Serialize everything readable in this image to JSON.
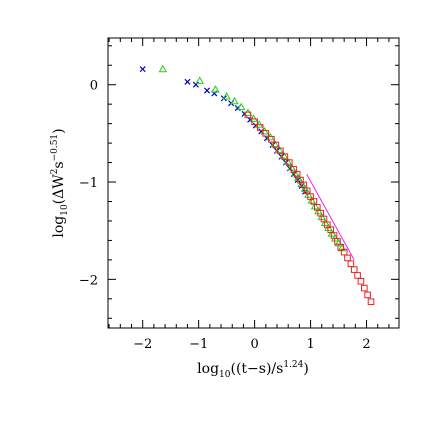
{
  "chart_data": {
    "type": "scatter",
    "title": "",
    "xlabel": {
      "prefix": "log",
      "sub": "10",
      "body": "((t−s)/s",
      "sup": "1.24",
      "suffix": ")"
    },
    "ylabel": {
      "prefix": "log",
      "sub": "10",
      "body": "(ΔW",
      "sup1": "2",
      "mid": "s",
      "sup2": "−0.51",
      "suffix": ")"
    },
    "xlim": [
      -2.62,
      2.58
    ],
    "ylim": [
      -2.5,
      0.48
    ],
    "x_ticks": [
      {
        "value": -2,
        "label": "−2"
      },
      {
        "value": -1,
        "label": "−1"
      },
      {
        "value": 0,
        "label": "0"
      },
      {
        "value": 1,
        "label": "1"
      },
      {
        "value": 2,
        "label": "2"
      }
    ],
    "y_ticks": [
      {
        "value": 0,
        "label": "0"
      },
      {
        "value": -1,
        "label": "−1"
      },
      {
        "value": -2,
        "label": "−2"
      }
    ],
    "x_minor_step": 0.2,
    "y_minor_step": 0.2,
    "grid": false,
    "colors": {
      "cross": "#0000cc",
      "triangle": "#22cc22",
      "square": "#ee2222",
      "line": "#ee22ee"
    },
    "series": [
      {
        "marker": "cross",
        "x": [
          -2.0,
          -1.2,
          -1.05,
          -0.85,
          -0.72,
          -0.55,
          -0.42,
          -0.3,
          -0.18,
          -0.08,
          0.02,
          0.12,
          0.22,
          0.32,
          0.4,
          0.48,
          0.56,
          0.63,
          0.7,
          0.77,
          0.84,
          0.9
        ],
        "y": [
          0.16,
          0.03,
          0.0,
          -0.06,
          -0.09,
          -0.14,
          -0.19,
          -0.24,
          -0.3,
          -0.36,
          -0.42,
          -0.48,
          -0.55,
          -0.62,
          -0.68,
          -0.74,
          -0.8,
          -0.86,
          -0.92,
          -0.98,
          -1.04,
          -1.1
        ]
      },
      {
        "marker": "triangle",
        "x": [
          -1.64,
          -0.98,
          -0.7,
          -0.5,
          -0.36,
          -0.24,
          -0.12,
          -0.02,
          0.08,
          0.18,
          0.28,
          0.36,
          0.44,
          0.52,
          0.59,
          0.66,
          0.72,
          0.78,
          0.84,
          0.9,
          0.96,
          1.02,
          1.08,
          1.14,
          1.2,
          1.26,
          1.32,
          1.38,
          1.44,
          1.5,
          1.56
        ],
        "y": [
          0.16,
          0.04,
          -0.05,
          -0.12,
          -0.17,
          -0.23,
          -0.29,
          -0.35,
          -0.41,
          -0.48,
          -0.54,
          -0.61,
          -0.67,
          -0.73,
          -0.79,
          -0.85,
          -0.91,
          -0.96,
          -1.02,
          -1.07,
          -1.13,
          -1.19,
          -1.25,
          -1.3,
          -1.36,
          -1.42,
          -1.47,
          -1.53,
          -1.58,
          -1.63,
          -1.68
        ]
      },
      {
        "marker": "square",
        "x": [
          -0.12,
          0.0,
          0.1,
          0.2,
          0.3,
          0.38,
          0.46,
          0.54,
          0.62,
          0.7,
          0.76,
          0.82,
          0.88,
          0.94,
          1.0,
          1.06,
          1.12,
          1.18,
          1.24,
          1.3,
          1.36,
          1.42,
          1.48,
          1.54,
          1.6,
          1.66,
          1.72,
          1.78,
          1.84,
          1.9,
          1.96,
          2.02,
          2.08
        ],
        "y": [
          -0.31,
          -0.38,
          -0.44,
          -0.5,
          -0.56,
          -0.62,
          -0.68,
          -0.74,
          -0.8,
          -0.87,
          -0.92,
          -0.98,
          -1.03,
          -1.09,
          -1.15,
          -1.2,
          -1.26,
          -1.32,
          -1.38,
          -1.44,
          -1.49,
          -1.55,
          -1.61,
          -1.67,
          -1.72,
          -1.78,
          -1.84,
          -1.9,
          -1.96,
          -2.02,
          -2.09,
          -2.16,
          -2.23
        ]
      }
    ],
    "reference_line": {
      "x": [
        0.93,
        1.78
      ],
      "y": [
        -0.92,
        -1.8
      ]
    }
  }
}
